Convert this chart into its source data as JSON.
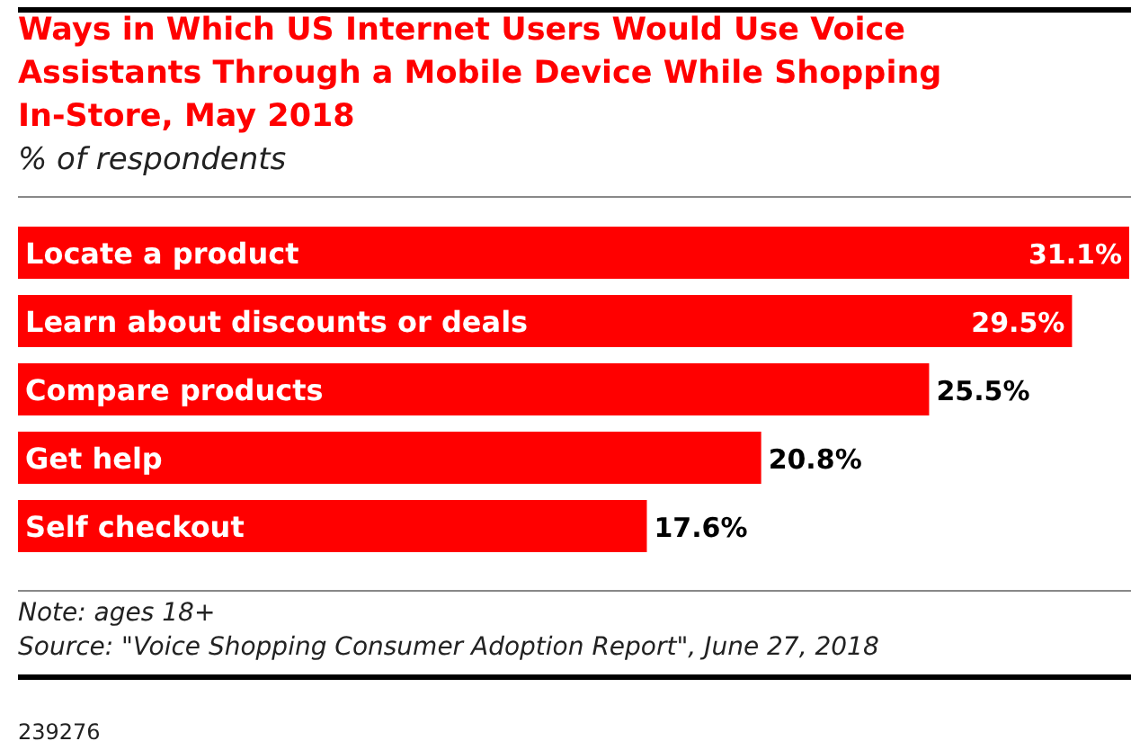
{
  "chart_data": {
    "type": "bar",
    "orientation": "horizontal",
    "title": "Ways in Which US Internet Users Would Use Voice Assistants Through a Mobile Device While Shopping In-Store, May 2018",
    "subtitle": "% of respondents",
    "categories": [
      "Locate a product",
      "Learn about discounts or deals",
      "Compare products",
      "Get help",
      "Self checkout"
    ],
    "values": [
      31.1,
      29.5,
      25.5,
      20.8,
      17.6
    ],
    "color": "#ff0000",
    "data_labels": true,
    "value_labels": [
      "31.1%",
      "29.5%",
      "25.5%",
      "20.8%",
      "17.6%"
    ],
    "annotations": [
      "Note: ages 18+",
      "Source: \"Voice Shopping Consumer Adoption Report\", June 27, 2018",
      "239276"
    ]
  }
}
